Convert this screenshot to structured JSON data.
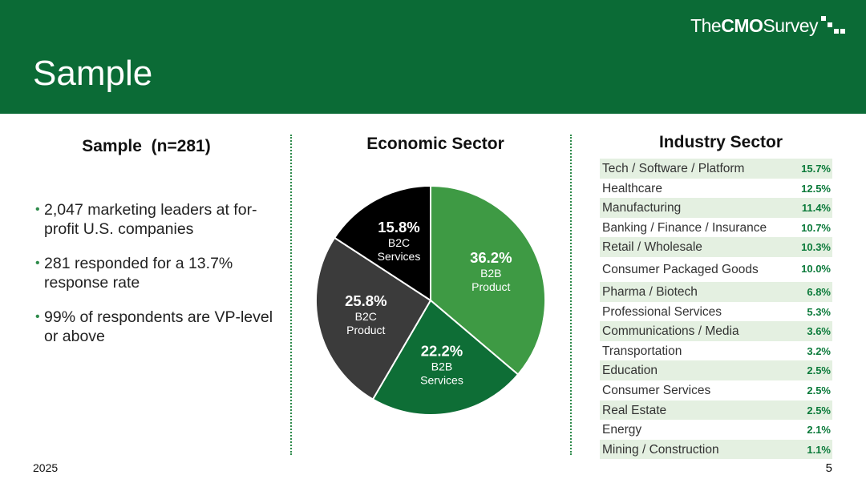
{
  "header": {
    "title": "Sample",
    "brand": {
      "prefix": "The",
      "bold": "CMO",
      "suffix": "Survey"
    },
    "colors": {
      "header_bg": "#0b6b36"
    }
  },
  "left_panel": {
    "heading": "Sample  (n=281)",
    "bullets": [
      "2,047 marketing leaders at for-profit U.S. companies",
      "281 responded for a 13.7% response rate",
      "99% of respondents are VP-level or above"
    ]
  },
  "middle_panel": {
    "heading": "Economic Sector"
  },
  "right_panel": {
    "heading": "Industry Sector"
  },
  "footer": {
    "year": "2025",
    "page": "5"
  },
  "chart_data": [
    {
      "type": "pie",
      "title": "Economic Sector",
      "start_angle_deg": 0,
      "slices": [
        {
          "pct": "36.2%",
          "value": 36.2,
          "line1": "B2B",
          "line2": "Product",
          "color": "#3e9a44"
        },
        {
          "pct": "22.2%",
          "value": 22.2,
          "line1": "B2B",
          "line2": "Services",
          "color": "#0e6e36"
        },
        {
          "pct": "25.8%",
          "value": 25.8,
          "line1": "B2C",
          "line2": "Product",
          "color": "#3b3b3b"
        },
        {
          "pct": "15.8%",
          "value": 15.8,
          "line1": "B2C",
          "line2": "Services",
          "color": "#000000"
        }
      ]
    },
    {
      "type": "table",
      "title": "Industry Sector",
      "rows": [
        {
          "name": "Tech / Software / Platform",
          "pct": "15.7%",
          "value": 15.7
        },
        {
          "name": "Healthcare",
          "pct": "12.5%",
          "value": 12.5
        },
        {
          "name": "Manufacturing",
          "pct": "11.4%",
          "value": 11.4
        },
        {
          "name": "Banking / Finance / Insurance",
          "pct": "10.7%",
          "value": 10.7
        },
        {
          "name": "Retail / Wholesale",
          "pct": "10.3%",
          "value": 10.3
        },
        {
          "name": "Consumer Packaged Goods",
          "pct": "10.0%",
          "value": 10.0
        },
        {
          "name": "Pharma / Biotech",
          "pct": "6.8%",
          "value": 6.8
        },
        {
          "name": "Professional Services",
          "pct": "5.3%",
          "value": 5.3
        },
        {
          "name": "Communications / Media",
          "pct": "3.6%",
          "value": 3.6
        },
        {
          "name": "Transportation",
          "pct": "3.2%",
          "value": 3.2
        },
        {
          "name": "Education",
          "pct": "2.5%",
          "value": 2.5
        },
        {
          "name": "Consumer Services",
          "pct": "2.5%",
          "value": 2.5
        },
        {
          "name": "Real Estate",
          "pct": "2.5%",
          "value": 2.5
        },
        {
          "name": "Energy",
          "pct": "2.1%",
          "value": 2.1
        },
        {
          "name": "Mining / Construction",
          "pct": "1.1%",
          "value": 1.1
        }
      ]
    }
  ]
}
